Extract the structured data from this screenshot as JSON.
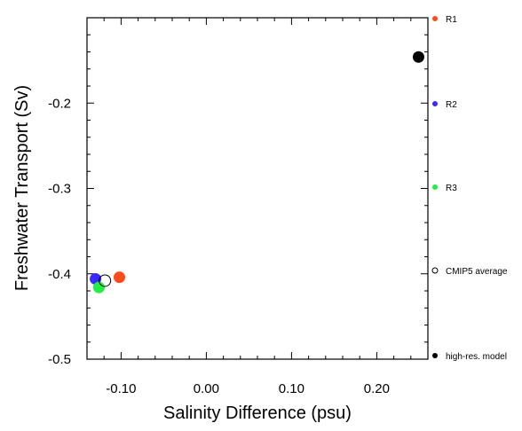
{
  "chart_data": {
    "type": "scatter",
    "title": "",
    "xlabel": "Salinity Difference (psu)",
    "ylabel": "Freshwater Transport (Sv)",
    "xlim": [
      -0.14,
      0.26
    ],
    "ylim": [
      -0.5,
      -0.1
    ],
    "x_ticks": [
      {
        "value": -0.1,
        "label": "-0.10"
      },
      {
        "value": 0.0,
        "label": "0.00"
      },
      {
        "value": 0.1,
        "label": "0.10"
      },
      {
        "value": 0.2,
        "label": "0.20"
      }
    ],
    "y_ticks": [
      {
        "value": -0.2,
        "label": "-0.2"
      },
      {
        "value": -0.3,
        "label": "-0.3"
      },
      {
        "value": -0.4,
        "label": "-0.4"
      },
      {
        "value": -0.5,
        "label": "-0.5"
      }
    ],
    "grid": false,
    "legend_position": "right, outside plot",
    "series": [
      {
        "name": "R1",
        "color": "#ff4a1c",
        "marker": "filled-circle",
        "points": [
          {
            "x": -0.102,
            "y": -0.404
          }
        ]
      },
      {
        "name": "R2",
        "color": "#3a2aff",
        "marker": "filled-circle",
        "points": [
          {
            "x": -0.13,
            "y": -0.406
          }
        ]
      },
      {
        "name": "R3",
        "color": "#22ee44",
        "marker": "filled-circle",
        "points": [
          {
            "x": -0.126,
            "y": -0.416
          }
        ]
      },
      {
        "name": "CMIP5 average",
        "color": "#000000",
        "marker": "open-circle",
        "points": [
          {
            "x": -0.119,
            "y": -0.408
          }
        ]
      },
      {
        "name": "high-res. model",
        "color": "#000000",
        "marker": "filled-circle",
        "points": [
          {
            "x": 0.249,
            "y": -0.146
          }
        ]
      }
    ]
  }
}
